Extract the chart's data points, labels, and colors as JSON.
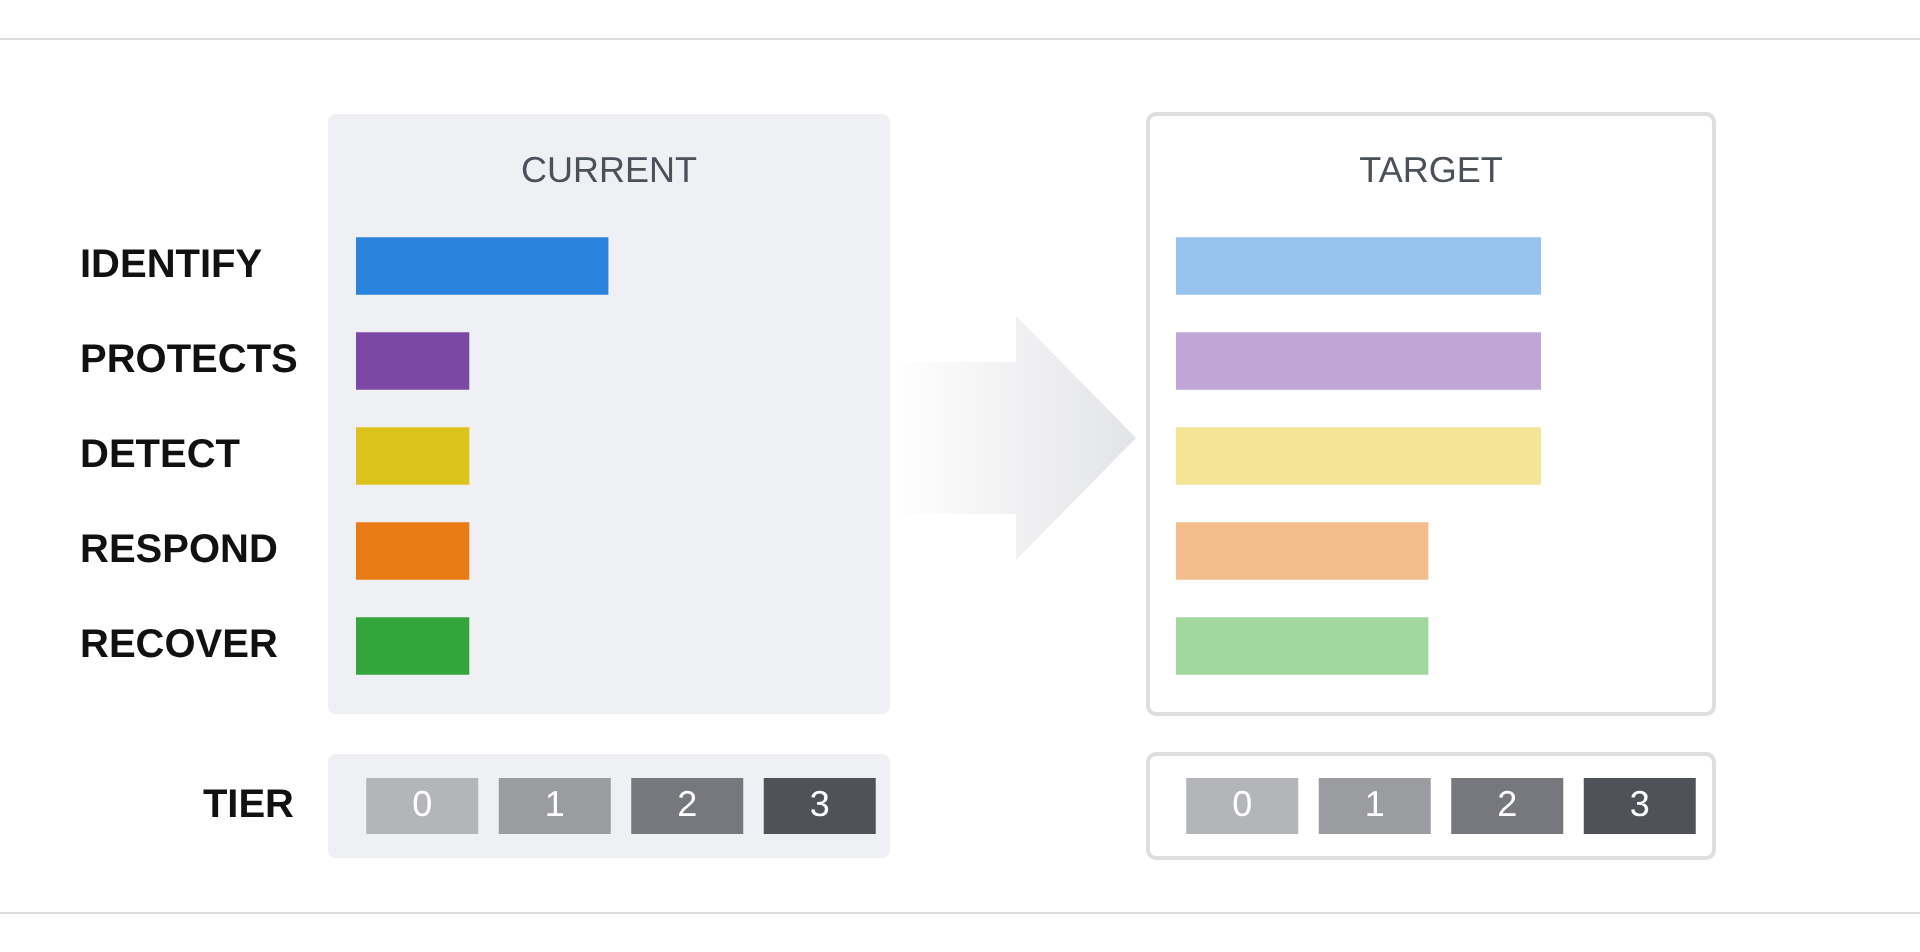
{
  "chart_data": [
    {
      "type": "bar",
      "orientation": "horizontal",
      "title": "CURRENT",
      "xlabel": "TIER",
      "categories": [
        "IDENTIFY",
        "PROTECTS",
        "DETECT",
        "RESPOND",
        "RECOVER"
      ],
      "values": [
        1.9,
        0.85,
        0.85,
        0.85,
        0.85
      ],
      "colors": [
        "#2a84de",
        "#7c48a6",
        "#dcc31c",
        "#ea7a14",
        "#34a53a"
      ],
      "xlim": [
        0,
        4
      ],
      "xticks": [
        {
          "value": 0.5,
          "label": "0"
        },
        {
          "value": 1.5,
          "label": "1"
        },
        {
          "value": 2.5,
          "label": "2"
        },
        {
          "value": 3.5,
          "label": "3"
        }
      ]
    },
    {
      "type": "bar",
      "orientation": "horizontal",
      "title": "TARGET",
      "categories": [
        null,
        null,
        null,
        null,
        null
      ],
      "values": [
        2.75,
        2.75,
        2.75,
        1.9,
        1.9
      ],
      "colors": [
        "#97c3ef",
        "#c0a6d6",
        "#f4e596",
        "#f4bd8c",
        "#a2d79d"
      ],
      "xlim": [
        0,
        4
      ],
      "xticks": [
        {
          "value": 0.5,
          "label": "0"
        },
        {
          "value": 1.5,
          "label": "1"
        },
        {
          "value": 2.5,
          "label": "2"
        },
        {
          "value": 3.5,
          "label": "3"
        }
      ],
      "tick_labels": "x"
    }
  ]
}
